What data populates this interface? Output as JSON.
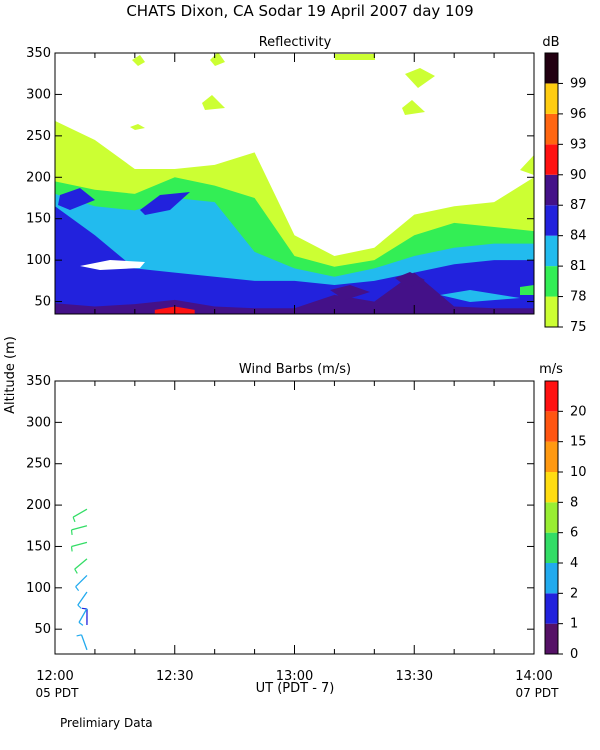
{
  "figure_title": "CHATS Dixon, CA  Sodar  19 April 2007  day 109",
  "y_axis_label": "Altitude (m)",
  "x_axis_label": "UT  (PDT - 7)",
  "left_local_time_label": "05 PDT",
  "right_local_time_label": "07 PDT",
  "footer_note": "Prelimiary Data",
  "chart_data": [
    {
      "type": "heatmap",
      "title": "Reflectivity",
      "colorbar_unit": "dB",
      "colorbar_levels": [
        75,
        78,
        81,
        84,
        87,
        90,
        93,
        96,
        99
      ],
      "colorbar_colors": [
        "#ccff33",
        "#33ee55",
        "#22bbee",
        "#2222dd",
        "#441188",
        "#ff1111",
        "#ff6611",
        "#ffcc11",
        "#220011"
      ],
      "xlim": [
        "12:00",
        "14:00"
      ],
      "x_ticks": [
        "12:00",
        "12:30",
        "13:00",
        "13:30",
        "14:00"
      ],
      "ylim": [
        35,
        350
      ],
      "y_ticks": [
        50,
        100,
        150,
        200,
        250,
        300,
        350
      ],
      "grid": false,
      "note": "filled contour field of echo intensity (dB) vs time (UT) and altitude (m); layers give approximate upper boundary heights of each level band across time",
      "layers": [
        {
          "level": 75,
          "points": [
            [
              "12:00",
              268
            ],
            [
              "12:10",
              245
            ],
            [
              "12:20",
              210
            ],
            [
              "12:30",
              210
            ],
            [
              "12:40",
              215
            ],
            [
              "12:50",
              230
            ],
            [
              "13:00",
              130
            ],
            [
              "13:10",
              105
            ],
            [
              "13:20",
              115
            ],
            [
              "13:30",
              155
            ],
            [
              "13:40",
              165
            ],
            [
              "13:50",
              170
            ],
            [
              "14:00",
              200
            ]
          ]
        },
        {
          "level": 78,
          "points": [
            [
              "12:00",
              195
            ],
            [
              "12:10",
              185
            ],
            [
              "12:20",
              180
            ],
            [
              "12:30",
              200
            ],
            [
              "12:40",
              190
            ],
            [
              "12:50",
              175
            ],
            [
              "13:00",
              105
            ],
            [
              "13:10",
              92
            ],
            [
              "13:20",
              100
            ],
            [
              "13:30",
              130
            ],
            [
              "13:40",
              145
            ],
            [
              "13:50",
              140
            ],
            [
              "14:00",
              135
            ]
          ]
        },
        {
          "level": 81,
          "points": [
            [
              "12:00",
              180
            ],
            [
              "12:10",
              165
            ],
            [
              "12:20",
              160
            ],
            [
              "12:30",
              175
            ],
            [
              "12:40",
              170
            ],
            [
              "12:50",
              110
            ],
            [
              "13:00",
              90
            ],
            [
              "13:10",
              80
            ],
            [
              "13:20",
              90
            ],
            [
              "13:30",
              105
            ],
            [
              "13:40",
              115
            ],
            [
              "13:50",
              120
            ],
            [
              "14:00",
              120
            ]
          ]
        },
        {
          "level": 84,
          "points": [
            [
              "12:00",
              165
            ],
            [
              "12:10",
              130
            ],
            [
              "12:20",
              90
            ],
            [
              "12:30",
              85
            ],
            [
              "12:40",
              80
            ],
            [
              "12:50",
              75
            ],
            [
              "13:00",
              75
            ],
            [
              "13:10",
              70
            ],
            [
              "13:20",
              75
            ],
            [
              "13:30",
              85
            ],
            [
              "13:40",
              95
            ],
            [
              "13:50",
              100
            ],
            [
              "14:00",
              100
            ]
          ]
        },
        {
          "level": 87,
          "points": [
            [
              "12:00",
              48
            ],
            [
              "12:10",
              44
            ],
            [
              "12:20",
              47
            ],
            [
              "12:30",
              52
            ],
            [
              "12:40",
              44
            ],
            [
              "12:50",
              42
            ],
            [
              "13:00",
              42
            ],
            [
              "13:10",
              58
            ],
            [
              "13:20",
              50
            ],
            [
              "13:30",
              85
            ],
            [
              "13:40",
              44
            ],
            [
              "13:50",
              42
            ],
            [
              "14:00",
              42
            ]
          ]
        },
        {
          "level": 90,
          "points": [
            [
              "12:25",
              40
            ],
            [
              "12:30",
              44
            ],
            [
              "12:35",
              40
            ]
          ]
        }
      ]
    },
    {
      "type": "scatter",
      "title": "Wind Barbs (m/s)",
      "colorbar_unit": "m/s",
      "colorbar_levels": [
        0,
        1,
        2,
        4,
        6,
        8,
        10,
        15,
        20
      ],
      "colorbar_colors": [
        "#551166",
        "#2222dd",
        "#22aaee",
        "#33dd66",
        "#99ee33",
        "#ffdd11",
        "#ff9911",
        "#ff5511",
        "#ff1111"
      ],
      "xlim": [
        "12:00",
        "14:00"
      ],
      "x_ticks": [
        "12:00",
        "12:30",
        "13:00",
        "13:30",
        "14:00"
      ],
      "ylim": [
        20,
        350
      ],
      "y_ticks": [
        50,
        100,
        150,
        200,
        250,
        300,
        350
      ],
      "grid": false,
      "barbs": [
        {
          "time": "12:05",
          "altitude": 25,
          "speed": 2.0,
          "direction_deg": 340
        },
        {
          "time": "12:05",
          "altitude": 55,
          "speed": 1.0,
          "direction_deg": 0
        },
        {
          "time": "12:05",
          "altitude": 75,
          "speed": 2.5,
          "direction_deg": 210
        },
        {
          "time": "12:05",
          "altitude": 95,
          "speed": 3.0,
          "direction_deg": 215
        },
        {
          "time": "12:05",
          "altitude": 115,
          "speed": 3.5,
          "direction_deg": 225
        },
        {
          "time": "12:05",
          "altitude": 135,
          "speed": 4.0,
          "direction_deg": 230
        },
        {
          "time": "12:05",
          "altitude": 155,
          "speed": 4.0,
          "direction_deg": 255
        },
        {
          "time": "12:05",
          "altitude": 175,
          "speed": 4.5,
          "direction_deg": 255
        },
        {
          "time": "12:05",
          "altitude": 195,
          "speed": 4.5,
          "direction_deg": 240
        }
      ]
    }
  ]
}
